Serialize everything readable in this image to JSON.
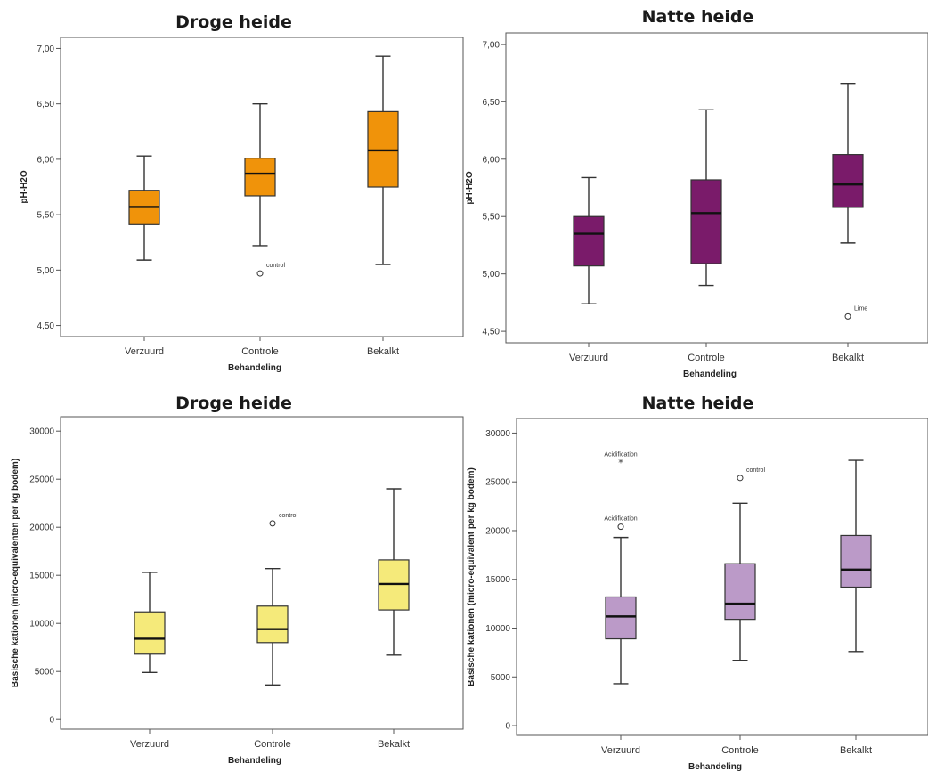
{
  "chart_data": [
    {
      "type": "boxplot",
      "title": "Droge heide",
      "xlabel": "Behandeling",
      "ylabel": "pH-H2O",
      "ylim": [
        4.4,
        7.1
      ],
      "yticks": [
        4.5,
        5.0,
        5.5,
        6.0,
        6.5,
        7.0
      ],
      "ytick_labels": [
        "4,50",
        "5,00",
        "5,50",
        "6,00",
        "6,50",
        "7,00"
      ],
      "categories": [
        "Verzuurd",
        "Controle",
        "Bekalkt"
      ],
      "color": "#f0930a",
      "boxes": [
        {
          "min": 5.09,
          "q1": 5.41,
          "median": 5.57,
          "q3": 5.72,
          "max": 6.03
        },
        {
          "min": 5.22,
          "q1": 5.67,
          "median": 5.87,
          "q3": 6.01,
          "max": 6.5
        },
        {
          "min": 5.05,
          "q1": 5.75,
          "median": 6.08,
          "q3": 6.43,
          "max": 6.93
        }
      ],
      "outliers": [
        {
          "category": 1,
          "value": 4.97,
          "marker": "circle",
          "label": "control"
        }
      ]
    },
    {
      "type": "boxplot",
      "title": "Natte heide",
      "xlabel": "Behandeling",
      "ylabel": "pH-H2O",
      "ylim": [
        4.4,
        7.1
      ],
      "yticks": [
        4.5,
        5.0,
        5.5,
        6.0,
        6.5,
        7.0
      ],
      "ytick_labels": [
        "4,50",
        "5,00",
        "5,50",
        "6,00",
        "6,50",
        "7,00"
      ],
      "categories": [
        "Verzuurd",
        "Controle",
        "Bekalkt"
      ],
      "color": "#7a1b6a",
      "boxes": [
        {
          "min": 4.74,
          "q1": 5.07,
          "median": 5.35,
          "q3": 5.5,
          "max": 5.84
        },
        {
          "min": 4.9,
          "q1": 5.09,
          "median": 5.53,
          "q3": 5.82,
          "max": 6.43
        },
        {
          "min": 5.27,
          "q1": 5.58,
          "median": 5.78,
          "q3": 6.04,
          "max": 6.66
        }
      ],
      "outliers": [
        {
          "category": 2,
          "value": 4.63,
          "marker": "circle",
          "label": "Lime"
        }
      ]
    },
    {
      "type": "boxplot",
      "title": "Droge heide",
      "xlabel": "Behandeling",
      "ylabel": "Basische kationen (micro-equivalenten per kg bodem)",
      "ylim": [
        -1000,
        31500
      ],
      "yticks": [
        0,
        5000,
        10000,
        15000,
        20000,
        25000,
        30000
      ],
      "ytick_labels": [
        "0",
        "5000",
        "10000",
        "15000",
        "20000",
        "25000",
        "30000"
      ],
      "categories": [
        "Verzuurd",
        "Controle",
        "Bekalkt"
      ],
      "color": "#f5ea7a",
      "boxes": [
        {
          "min": 4900,
          "q1": 6800,
          "median": 8400,
          "q3": 11200,
          "max": 15300
        },
        {
          "min": 3600,
          "q1": 8000,
          "median": 9400,
          "q3": 11800,
          "max": 15700
        },
        {
          "min": 6700,
          "q1": 11400,
          "median": 14100,
          "q3": 16600,
          "max": 24000
        }
      ],
      "outliers": [
        {
          "category": 1,
          "value": 20400,
          "marker": "circle",
          "label": "control"
        }
      ]
    },
    {
      "type": "boxplot",
      "title": "Natte heide",
      "xlabel": "Behandeling",
      "ylabel": "Basische kationen (micro-equivalent per kg bodem)",
      "ylim": [
        -1000,
        31500
      ],
      "yticks": [
        0,
        5000,
        10000,
        15000,
        20000,
        25000,
        30000
      ],
      "ytick_labels": [
        "0",
        "5000",
        "10000",
        "15000",
        "20000",
        "25000",
        "30000"
      ],
      "categories": [
        "Verzuurd",
        "Controle",
        "Bekalkt"
      ],
      "color": "#bb9ac8",
      "boxes": [
        {
          "min": 4300,
          "q1": 8900,
          "median": 11200,
          "q3": 13200,
          "max": 19300
        },
        {
          "min": 6700,
          "q1": 10900,
          "median": 12500,
          "q3": 16600,
          "max": 22800
        },
        {
          "min": 7600,
          "q1": 14200,
          "median": 16000,
          "q3": 19500,
          "max": 27200
        }
      ],
      "outliers": [
        {
          "category": 0,
          "value": 27000,
          "marker": "star",
          "label": "Acidification"
        },
        {
          "category": 0,
          "value": 20400,
          "marker": "circle",
          "label": "Acidification"
        },
        {
          "category": 1,
          "value": 25400,
          "marker": "circle",
          "label": "control"
        }
      ]
    }
  ]
}
